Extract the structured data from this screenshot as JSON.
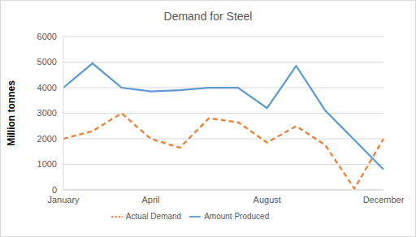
{
  "chart_data": {
    "type": "line",
    "title": "Demand for Steel",
    "y_label": "Million tonnes",
    "categories": [
      "January",
      null,
      null,
      "April",
      null,
      null,
      null,
      "August",
      null,
      null,
      null,
      "December"
    ],
    "series": [
      {
        "name": "Amount Produced",
        "color": "#5b9bd5",
        "line_style": "solid",
        "values": [
          4000,
          4950,
          4000,
          3850,
          3900,
          4000,
          4000,
          3200,
          4850,
          3100,
          1950,
          800
        ]
      },
      {
        "name": "Actual Demand",
        "color": "#ed7d31",
        "line_style": "dashed",
        "values": [
          2000,
          2300,
          3000,
          2000,
          1650,
          2800,
          2650,
          1850,
          2500,
          1750,
          50,
          2000
        ]
      }
    ],
    "ylim": [
      0,
      6000
    ],
    "yticks": [
      0,
      1000,
      2000,
      3000,
      4000,
      5000,
      6000
    ],
    "grid": true,
    "legend": "bottom"
  }
}
